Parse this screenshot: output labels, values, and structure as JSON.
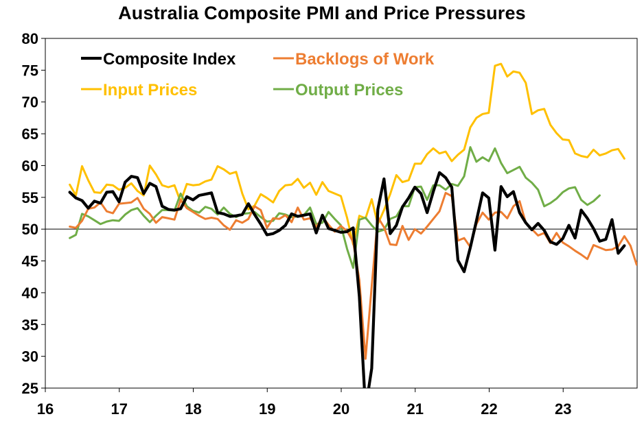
{
  "chart_data": {
    "type": "line",
    "title": "Australia Composite PMI and Price Pressures",
    "xlabel": "",
    "ylabel": "",
    "xlim": [
      2016,
      2024
    ],
    "ylim": [
      25,
      80
    ],
    "x_ticks": [
      "16",
      "17",
      "18",
      "19",
      "20",
      "21",
      "22",
      "23"
    ],
    "y_ticks": [
      "25",
      "30",
      "35",
      "40",
      "45",
      "50",
      "55",
      "60",
      "65",
      "70",
      "75",
      "80"
    ],
    "reference_line": 50,
    "legend_position": "top-left",
    "start": 2016.33,
    "step": 0.0833,
    "series": [
      {
        "name": "Composite Index",
        "color": "#000000",
        "values": [
          55.8,
          54.9,
          54.5,
          53.3,
          54.4,
          54.1,
          55.8,
          55.9,
          54.3,
          57.4,
          58.3,
          58.1,
          55.6,
          57.2,
          56.7,
          53.6,
          53.1,
          53.0,
          53.2,
          55.1,
          54.6,
          55.3,
          55.5,
          55.7,
          52.6,
          52.4,
          52.0,
          52.1,
          52.3,
          54.0,
          52.3,
          50.8,
          49.1,
          49.3,
          49.8,
          50.6,
          52.4,
          52.0,
          52.2,
          52.4,
          49.4,
          52.2,
          50.1,
          49.8,
          49.5,
          49.6,
          50.2,
          39.4,
          21.7,
          28.1,
          53.1,
          57.9,
          49.3,
          50.6,
          53.5,
          54.9,
          56.6,
          55.6,
          52.6,
          55.9,
          58.9,
          58.1,
          56.6,
          45.1,
          43.3,
          47.1,
          51.3,
          55.7,
          54.9,
          46.7,
          56.7,
          55.1,
          55.9,
          52.6,
          51.0,
          49.9,
          50.9,
          49.8,
          48.0,
          47.6,
          48.5,
          50.6,
          48.6,
          53.0,
          51.7,
          50.1,
          48.1,
          48.4,
          51.5,
          46.2,
          47.4
        ]
      },
      {
        "name": "Backlogs of Work",
        "color": "#ED7D31",
        "values": [
          50.4,
          50.2,
          51.3,
          53.2,
          53.4,
          54.2,
          52.8,
          52.5,
          54.0,
          54.1,
          54.2,
          54.9,
          53.2,
          52.4,
          51.0,
          51.9,
          51.7,
          51.5,
          54.6,
          53.3,
          52.7,
          52.1,
          51.6,
          51.8,
          51.6,
          50.6,
          49.9,
          51.4,
          51.0,
          51.6,
          53.6,
          53.0,
          50.2,
          51.7,
          51.6,
          52.2,
          51.1,
          53.4,
          51.5,
          51.7,
          50.3,
          51.9,
          50.7,
          49.6,
          50.5,
          49.7,
          48.0,
          42.0,
          29.6,
          41.0,
          51.9,
          50.3,
          47.6,
          47.5,
          50.5,
          48.3,
          50.0,
          49.3,
          50.4,
          51.6,
          52.8,
          55.7,
          55.2,
          48.2,
          48.6,
          47.2,
          50.8,
          52.6,
          51.5,
          52.6,
          52.7,
          51.7,
          53.6,
          54.4,
          51.0,
          50.0,
          49.0,
          49.4,
          47.8,
          49.4,
          47.9,
          47.3,
          46.6,
          46.0,
          45.3,
          47.5,
          47.1,
          46.7,
          46.8,
          47.3,
          48.9,
          47.4,
          44.4,
          46.4
        ]
      },
      {
        "name": "Input Prices",
        "color": "#FFC000",
        "values": [
          57.0,
          55.3,
          59.9,
          57.7,
          55.8,
          55.7,
          57.0,
          56.9,
          56.2,
          56.5,
          57.2,
          56.0,
          55.3,
          60.0,
          58.6,
          56.9,
          56.6,
          56.9,
          54.3,
          57.1,
          56.9,
          57.0,
          57.5,
          57.8,
          59.9,
          59.4,
          58.7,
          59.0,
          55.6,
          53.1,
          53.7,
          55.5,
          54.9,
          54.2,
          56.0,
          56.9,
          57.0,
          57.9,
          56.5,
          57.3,
          55.4,
          57.4,
          56.0,
          55.6,
          55.2,
          51.8,
          47.6,
          52.1,
          51.7,
          54.7,
          50.8,
          53.0,
          55.5,
          58.5,
          57.4,
          57.7,
          60.3,
          60.3,
          61.8,
          62.7,
          61.9,
          62.2,
          60.7,
          61.7,
          62.5,
          66.0,
          67.5,
          68.1,
          68.3,
          75.7,
          76.0,
          74.0,
          74.8,
          74.6,
          73.0,
          68.1,
          68.7,
          68.9,
          66.4,
          65.1,
          64.1,
          64.0,
          61.9,
          61.5,
          61.3,
          62.5,
          61.6,
          61.9,
          62.4,
          62.6,
          61.1
        ]
      },
      {
        "name": "Output Prices",
        "color": "#70AD47",
        "values": [
          48.6,
          49.1,
          52.4,
          52.0,
          51.4,
          50.8,
          51.2,
          51.4,
          51.3,
          52.3,
          53.0,
          53.3,
          52.1,
          51.1,
          52.1,
          53.0,
          53.0,
          52.9,
          55.6,
          53.6,
          52.9,
          52.6,
          53.5,
          53.2,
          52.3,
          53.4,
          52.4,
          51.9,
          52.4,
          52.5,
          52.7,
          51.9,
          51.2,
          51.3,
          52.5,
          52.3,
          51.9,
          52.0,
          52.2,
          53.4,
          50.8,
          51.0,
          52.7,
          51.6,
          50.6,
          46.9,
          43.9,
          51.5,
          51.8,
          50.6,
          49.6,
          49.9,
          51.6,
          52.0,
          53.6,
          53.6,
          56.6,
          56.7,
          54.6,
          56.9,
          56.9,
          56.2,
          57.1,
          56.8,
          58.3,
          62.9,
          60.6,
          61.3,
          60.7,
          62.7,
          60.4,
          58.8,
          59.3,
          59.8,
          58.1,
          57.3,
          56.2,
          53.6,
          54.1,
          54.8,
          55.8,
          56.4,
          56.6,
          54.6,
          53.8,
          54.4,
          55.3
        ]
      }
    ]
  }
}
